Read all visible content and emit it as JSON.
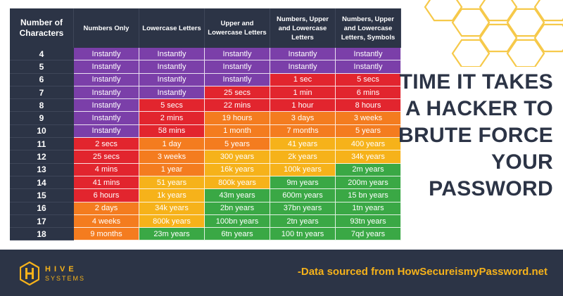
{
  "header": {
    "columns": [
      {
        "label": "Number of Characters"
      },
      {
        "label": "Numbers Only"
      },
      {
        "label": "Lowercase Letters"
      },
      {
        "label": "Upper and Lowercase Letters"
      },
      {
        "label": "Numbers, Upper and Lowercase Letters"
      },
      {
        "label": "Numbers, Upper and Lowercase Letters, Symbols"
      }
    ]
  },
  "rows": [
    {
      "chars": "4",
      "cells": [
        {
          "t": "Instantly",
          "c": "purple"
        },
        {
          "t": "Instantly",
          "c": "purple"
        },
        {
          "t": "Instantly",
          "c": "purple"
        },
        {
          "t": "Instantly",
          "c": "purple"
        },
        {
          "t": "Instantly",
          "c": "purple"
        }
      ]
    },
    {
      "chars": "5",
      "cells": [
        {
          "t": "Instantly",
          "c": "purple"
        },
        {
          "t": "Instantly",
          "c": "purple"
        },
        {
          "t": "Instantly",
          "c": "purple"
        },
        {
          "t": "Instantly",
          "c": "purple"
        },
        {
          "t": "Instantly",
          "c": "purple"
        }
      ]
    },
    {
      "chars": "6",
      "cells": [
        {
          "t": "Instantly",
          "c": "purple"
        },
        {
          "t": "Instantly",
          "c": "purple"
        },
        {
          "t": "Instantly",
          "c": "purple"
        },
        {
          "t": "1 sec",
          "c": "red"
        },
        {
          "t": "5 secs",
          "c": "red"
        }
      ]
    },
    {
      "chars": "7",
      "cells": [
        {
          "t": "Instantly",
          "c": "purple"
        },
        {
          "t": "Instantly",
          "c": "purple"
        },
        {
          "t": "25 secs",
          "c": "red"
        },
        {
          "t": "1 min",
          "c": "red"
        },
        {
          "t": "6 mins",
          "c": "red"
        }
      ]
    },
    {
      "chars": "8",
      "cells": [
        {
          "t": "Instantly",
          "c": "purple"
        },
        {
          "t": "5 secs",
          "c": "red"
        },
        {
          "t": "22 mins",
          "c": "red"
        },
        {
          "t": "1 hour",
          "c": "red"
        },
        {
          "t": "8 hours",
          "c": "red"
        }
      ]
    },
    {
      "chars": "9",
      "cells": [
        {
          "t": "Instantly",
          "c": "purple"
        },
        {
          "t": "2 mins",
          "c": "red"
        },
        {
          "t": "19 hours",
          "c": "orange"
        },
        {
          "t": "3 days",
          "c": "orange"
        },
        {
          "t": "3 weeks",
          "c": "orange"
        }
      ]
    },
    {
      "chars": "10",
      "cells": [
        {
          "t": "Instantly",
          "c": "purple"
        },
        {
          "t": "58 mins",
          "c": "red"
        },
        {
          "t": "1 month",
          "c": "orange"
        },
        {
          "t": "7 months",
          "c": "orange"
        },
        {
          "t": "5 years",
          "c": "orange"
        }
      ]
    },
    {
      "chars": "11",
      "cells": [
        {
          "t": "2 secs",
          "c": "red"
        },
        {
          "t": "1 day",
          "c": "orange"
        },
        {
          "t": "5 years",
          "c": "orange"
        },
        {
          "t": "41 years",
          "c": "yellow"
        },
        {
          "t": "400 years",
          "c": "yellow"
        }
      ]
    },
    {
      "chars": "12",
      "cells": [
        {
          "t": "25 secs",
          "c": "red"
        },
        {
          "t": "3 weeks",
          "c": "orange"
        },
        {
          "t": "300 years",
          "c": "yellow"
        },
        {
          "t": "2k years",
          "c": "yellow"
        },
        {
          "t": "34k years",
          "c": "yellow"
        }
      ]
    },
    {
      "chars": "13",
      "cells": [
        {
          "t": "4 mins",
          "c": "red"
        },
        {
          "t": "1 year",
          "c": "orange"
        },
        {
          "t": "16k years",
          "c": "yellow"
        },
        {
          "t": "100k years",
          "c": "yellow"
        },
        {
          "t": "2m years",
          "c": "green"
        }
      ]
    },
    {
      "chars": "14",
      "cells": [
        {
          "t": "41 mins",
          "c": "red"
        },
        {
          "t": "51 years",
          "c": "yellow"
        },
        {
          "t": "800k years",
          "c": "yellow"
        },
        {
          "t": "9m years",
          "c": "green"
        },
        {
          "t": "200m years",
          "c": "green"
        }
      ]
    },
    {
      "chars": "15",
      "cells": [
        {
          "t": "6 hours",
          "c": "red"
        },
        {
          "t": "1k years",
          "c": "yellow"
        },
        {
          "t": "43m years",
          "c": "green"
        },
        {
          "t": "600m years",
          "c": "green"
        },
        {
          "t": "15 bn years",
          "c": "green"
        }
      ]
    },
    {
      "chars": "16",
      "cells": [
        {
          "t": "2 days",
          "c": "orange"
        },
        {
          "t": "34k years",
          "c": "yellow"
        },
        {
          "t": "2bn years",
          "c": "green"
        },
        {
          "t": "37bn years",
          "c": "green"
        },
        {
          "t": "1tn years",
          "c": "green"
        }
      ]
    },
    {
      "chars": "17",
      "cells": [
        {
          "t": "4 weeks",
          "c": "orange"
        },
        {
          "t": "800k years",
          "c": "yellow"
        },
        {
          "t": "100bn years",
          "c": "green"
        },
        {
          "t": "2tn years",
          "c": "green"
        },
        {
          "t": "93tn years",
          "c": "green"
        }
      ]
    },
    {
      "chars": "18",
      "cells": [
        {
          "t": "9 months",
          "c": "orange"
        },
        {
          "t": "23m years",
          "c": "green"
        },
        {
          "t": "6tn years",
          "c": "green"
        },
        {
          "t": "100 tn years",
          "c": "green"
        },
        {
          "t": "7qd years",
          "c": "green"
        }
      ]
    }
  ],
  "colors": {
    "purple": "#7b3fa9",
    "red": "#e2252e",
    "orange": "#f47c1f",
    "yellow": "#f6b21a",
    "green": "#3aa845",
    "navy": "#2c3446"
  },
  "side_title": {
    "lines": [
      "TIME IT TAKES",
      "A HACKER TO",
      "BRUTE FORCE",
      "YOUR",
      "PASSWORD"
    ]
  },
  "footer": {
    "logo_icon": "hive-logo-icon",
    "logo_word1": "HIVE",
    "logo_word2": "SYSTEMS",
    "source": "-Data sourced from HowSecureismyPassword.net"
  }
}
